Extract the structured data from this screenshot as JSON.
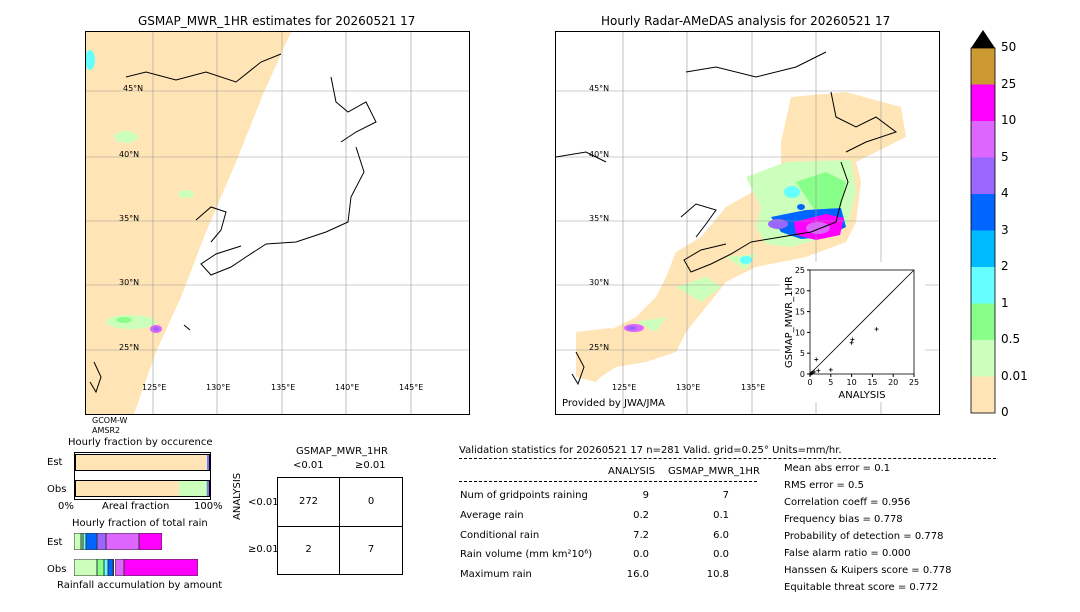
{
  "left_map": {
    "title": "GSMAP_MWR_1HR estimates for 20260521 17",
    "lat_labels": [
      "45°N",
      "40°N",
      "35°N",
      "30°N",
      "25°N"
    ],
    "lon_labels": [
      "125°E",
      "130°E",
      "135°E",
      "140°E",
      "145°E"
    ],
    "satellite_line1": "GCOM-W",
    "satellite_line2": "AMSR2"
  },
  "right_map": {
    "title": "Hourly Radar-AMeDAS analysis for 20260521 17",
    "lat_labels": [
      "45°N",
      "40°N",
      "35°N",
      "30°N",
      "25°N"
    ],
    "lon_labels": [
      "125°E",
      "130°E",
      "135°E",
      "140°E",
      "145°E"
    ],
    "credit": "Provided by JWA/JMA"
  },
  "colorbar": {
    "ticks": [
      "50",
      "25",
      "10",
      "5",
      "4",
      "3",
      "2",
      "1",
      "0.5",
      "0.01",
      "0"
    ],
    "colors": [
      "#cc9933",
      "#ff00ff",
      "#dd66ff",
      "#9966ff",
      "#0066ff",
      "#00bbff",
      "#66ffff",
      "#88ff88",
      "#ccffbb",
      "#ffe4b5"
    ]
  },
  "chart_data": [
    {
      "type": "scatter",
      "title": "",
      "xlabel": "ANALYSIS",
      "ylabel": "GSMAP_MWR_1HR",
      "xlim": [
        0,
        25
      ],
      "ylim": [
        0,
        25
      ],
      "xticks": [
        "0",
        "5",
        "10",
        "15",
        "20",
        "25"
      ],
      "yticks": [
        "0",
        "5",
        "10",
        "15",
        "20",
        "25"
      ],
      "points": [
        {
          "x": 0.2,
          "y": 0.1
        },
        {
          "x": 0.4,
          "y": 0.2
        },
        {
          "x": 0.6,
          "y": 0.3
        },
        {
          "x": 1.0,
          "y": 0.5
        },
        {
          "x": 1.5,
          "y": 3.5
        },
        {
          "x": 2.0,
          "y": 0.8
        },
        {
          "x": 5.0,
          "y": 1.0
        },
        {
          "x": 10.0,
          "y": 7.5
        },
        {
          "x": 10.2,
          "y": 8.3
        },
        {
          "x": 16.0,
          "y": 10.8
        }
      ]
    },
    {
      "type": "bar",
      "title": "Hourly fraction by occurence",
      "categories": [
        "Est",
        "Obs"
      ],
      "xlabel": "Areal fraction",
      "x_left": "0%",
      "x_right": "100%",
      "series": [
        {
          "color": "#ffe4b5",
          "values": [
            0.97,
            0.77
          ]
        },
        {
          "color": "#ccffbb",
          "values": [
            0.01,
            0.2
          ]
        },
        {
          "color": "#88ff88",
          "values": [
            0.0,
            0.01
          ]
        },
        {
          "color": "#9966ff",
          "values": [
            0.01,
            0.01
          ]
        },
        {
          "color": "#222222",
          "values": [
            0.01,
            0.01
          ]
        }
      ]
    },
    {
      "type": "bar",
      "title": "Hourly fraction of total rain",
      "categories": [
        "Est",
        "Obs"
      ],
      "xlabel": "Rainfall accumulation by amount",
      "series": [
        {
          "color": "#ccffbb",
          "values": [
            0.05,
            0.17
          ]
        },
        {
          "color": "#88ff88",
          "values": [
            0.02,
            0.05
          ]
        },
        {
          "color": "#66ffff",
          "values": [
            0.02,
            0.03
          ]
        },
        {
          "color": "#0066ff",
          "values": [
            0.08,
            0.04
          ]
        },
        {
          "color": "#9966ff",
          "values": [
            0.07,
            0.01
          ]
        },
        {
          "color": "#dd66ff",
          "values": [
            0.24,
            0.07
          ]
        },
        {
          "color": "#ff00ff",
          "values": [
            0.17,
            0.55
          ]
        }
      ]
    }
  ],
  "contingency": {
    "title": "GSMAP_MWR_1HR",
    "col_lt": "<0.01",
    "col_ge": "≥0.01",
    "row_axis": "ANALYSIS",
    "row_lt": "<0.01",
    "row_ge": "≥0.01",
    "cells": [
      "272",
      "0",
      "2",
      "7"
    ]
  },
  "validation": {
    "header": "Validation statistics for 20260521 17  n=281 Valid. grid=0.25° Units=mm/hr.",
    "col_analysis": "ANALYSIS",
    "col_gsmap": "GSMAP_MWR_1HR",
    "rows": [
      {
        "label": "Num of gridpoints raining",
        "analysis": "9",
        "gsmap": "7"
      },
      {
        "label": "Average rain",
        "analysis": "0.2",
        "gsmap": "0.1"
      },
      {
        "label": "Conditional rain",
        "analysis": "7.2",
        "gsmap": "6.0"
      },
      {
        "label": "Rain volume (mm km²10⁶)",
        "analysis": "0.0",
        "gsmap": "0.0"
      },
      {
        "label": "Maximum rain",
        "analysis": "16.0",
        "gsmap": "10.8"
      }
    ],
    "scores": [
      "Mean abs error =    0.1",
      "RMS error =    0.5",
      "Correlation coeff =  0.956",
      "Frequency bias =  0.778",
      "Probability of detection =  0.778",
      "False alarm ratio =  0.000",
      "Hanssen & Kuipers score =  0.778",
      "Equitable threat score =  0.772"
    ]
  }
}
